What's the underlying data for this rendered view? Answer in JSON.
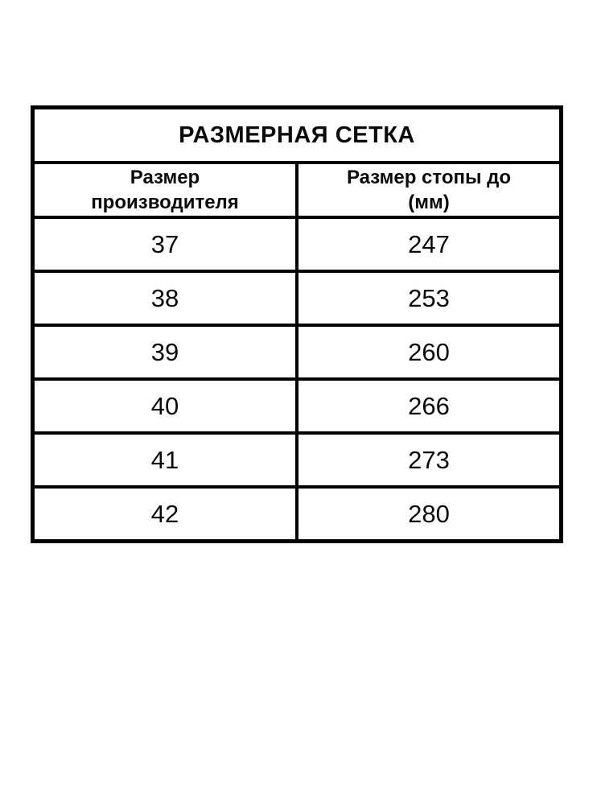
{
  "page": {
    "background": "#ffffff"
  },
  "table": {
    "title": "РАЗМЕРНАЯ СЕТКА",
    "header": [
      {
        "line1": "Размер",
        "line2": "производителя"
      },
      {
        "line1": "Размер стопы до",
        "line2": "(мм)"
      }
    ],
    "rows": [
      {
        "size": "37",
        "foot": "247"
      },
      {
        "size": "38",
        "foot": "253"
      },
      {
        "size": "39",
        "foot": "260"
      },
      {
        "size": "40",
        "foot": "266"
      },
      {
        "size": "41",
        "foot": "273"
      },
      {
        "size": "42",
        "foot": "280"
      }
    ],
    "colors": {
      "border": "#000000",
      "text": "#000000",
      "background": "#ffffff"
    }
  },
  "chart_data": {
    "type": "table",
    "title": "РАЗМЕРНАЯ СЕТКА",
    "columns": [
      "Размер производителя",
      "Размер стопы до (мм)"
    ],
    "rows": [
      [
        37,
        247
      ],
      [
        38,
        253
      ],
      [
        39,
        260
      ],
      [
        40,
        266
      ],
      [
        41,
        273
      ],
      [
        42,
        280
      ]
    ]
  }
}
